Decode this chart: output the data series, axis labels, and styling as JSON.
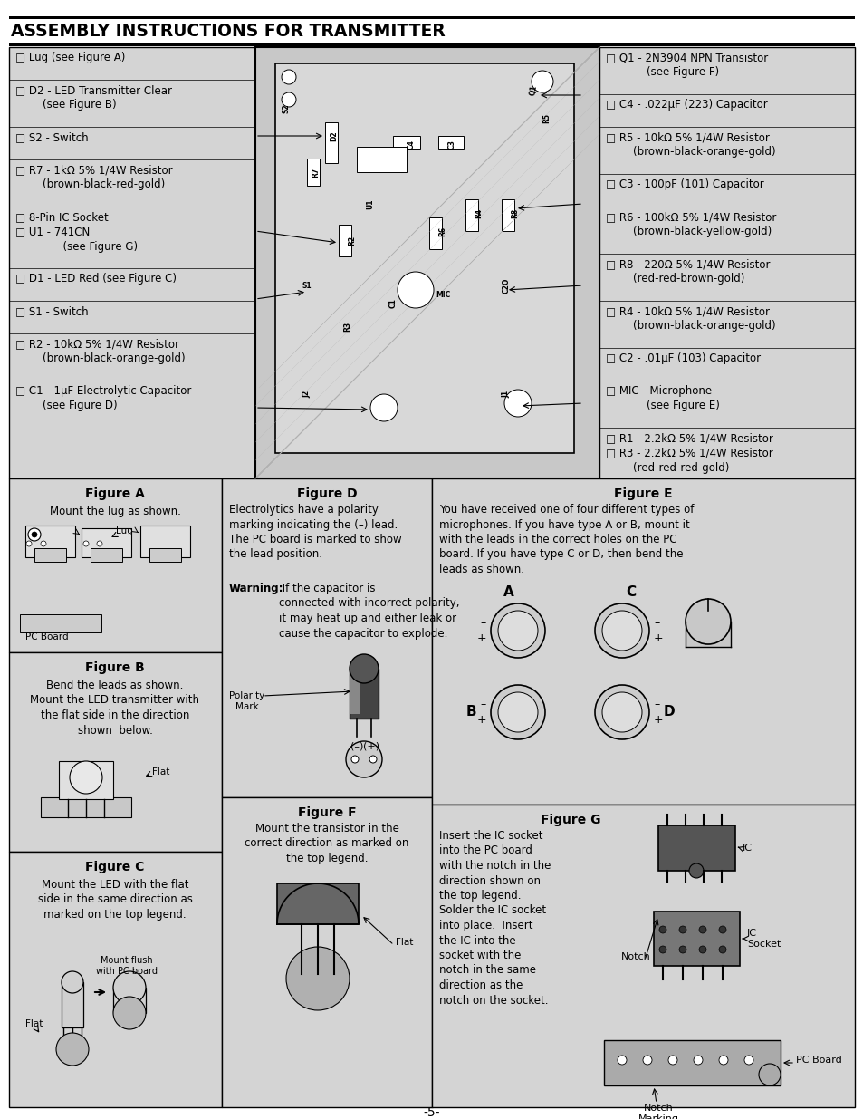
{
  "title": "ASSEMBLY INSTRUCTIONS FOR TRANSMITTER",
  "page_number": "-5-",
  "bg": "#ffffff",
  "panel_bg": "#d4d4d4",
  "white_bg": "#ffffff",
  "left_texts": [
    "□ Lug (see Figure A)",
    "□ D2 - LED Transmitter Clear\n        (see Figure B)",
    "□ S2 - Switch",
    "□ R7 - 1kΩ 5% 1/4W Resistor\n        (brown-black-red-gold)",
    "□ 8-Pin IC Socket\n□ U1 - 741CN\n              (see Figure G)",
    "□ D1 - LED Red (see Figure C)",
    "□ S1 - Switch",
    "□ R2 - 10kΩ 5% 1/4W Resistor\n        (brown-black-orange-gold)",
    "□ C1 - 1μF Electrolytic Capacitor\n        (see Figure D)"
  ],
  "left_heights": [
    36,
    52,
    36,
    52,
    68,
    36,
    36,
    52,
    52
  ],
  "right_texts": [
    "□ Q1 - 2N3904 NPN Transistor\n            (see Figure F)",
    "□ C4 - .022μF (223) Capacitor",
    "□ R5 - 10kΩ 5% 1/4W Resistor\n        (brown-black-orange-gold)",
    "□ C3 - 100pF (101) Capacitor",
    "□ R6 - 100kΩ 5% 1/4W Resistor\n        (brown-black-yellow-gold)",
    "□ R8 - 220Ω 5% 1/4W Resistor\n        (red-red-brown-gold)",
    "□ R4 - 10kΩ 5% 1/4W Resistor\n        (brown-black-orange-gold)",
    "□ C2 - .01μF (103) Capacitor",
    "□ MIC - Microphone\n            (see Figure E)",
    "□ R1 - 2.2kΩ 5% 1/4W Resistor\n□ R3 - 2.2kΩ 5% 1/4W Resistor\n        (red-red-red-gold)"
  ],
  "right_heights": [
    52,
    36,
    52,
    36,
    52,
    52,
    52,
    36,
    52,
    68
  ],
  "figA_title": "Figure A",
  "figA_text": "Mount the lug as shown.",
  "figB_title": "Figure B",
  "figB_text": "Bend the leads as shown.\nMount the LED transmitter with\nthe flat side in the direction\nshown  below.",
  "figC_title": "Figure C",
  "figC_text": "Mount the LED with the flat\nside in the same direction as\nmarked on the top legend.",
  "figD_title": "Figure D",
  "figD_text1": "Electrolytics have a polarity\nmarking indicating the (–) lead.\nThe PC board is marked to show\nthe lead position.",
  "figD_warn": "Warning:",
  "figD_text2": " If the capacitor is\nconnected with incorrect polarity,\nit may heat up and either leak or\ncause the capacitor to explode.",
  "figE_title": "Figure E",
  "figE_text": "You have received one of four different types of\nmicrophones. If you have type A or B, mount it\nwith the leads in the correct holes on the PC\nboard. If you have type C or D, then bend the\nleads as shown.",
  "figF_title": "Figure F",
  "figF_text": "Mount the transistor in the\ncorrect direction as marked on\nthe top legend.",
  "figG_title": "Figure G",
  "figG_text": "Insert the IC socket\ninto the PC board\nwith the notch in the\ndirection shown on\nthe top legend.\nSolder the IC socket\ninto place.  Insert\nthe IC into the\nsocket with the\nnotch in the same\ndirection as the\nnotch on the socket."
}
